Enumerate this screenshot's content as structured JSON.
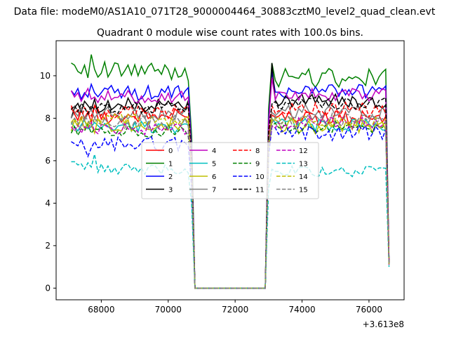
{
  "figure": {
    "suptitle": "Data file: modeM0/AS1A10_071T28_9000004464_30883cztM0_level2_quad_clean.evt",
    "title": "Quadrant 0 module wise count rates with 100.0s bins.",
    "x_offset_label": "+3.613e8"
  },
  "chart_data": {
    "type": "line",
    "title": "Quadrant 0 module wise count rates with 100.0s bins.",
    "xlabel": "",
    "ylabel": "",
    "x_offset": 361300000,
    "xlim": [
      66650,
      77050
    ],
    "ylim": [
      -0.55,
      11.65
    ],
    "xticks": [
      68000,
      70000,
      72000,
      74000,
      76000
    ],
    "yticks": [
      0,
      2,
      4,
      6,
      8,
      10
    ],
    "grid": false,
    "legend": {
      "placement": "center",
      "columns": 4
    },
    "segments": [
      {
        "x_start": 67100,
        "x_end": 70600,
        "step": 100
      },
      {
        "x_start": 70700,
        "x_end": 70800,
        "step": 100
      },
      {
        "x_start": 70800,
        "x_end": 72900,
        "step": 100
      },
      {
        "x_start": 73000,
        "x_end": 73100,
        "step": 100
      },
      {
        "x_start": 73100,
        "x_end": 76500,
        "step": 100
      },
      {
        "x_start": 76600,
        "x_end": 76600,
        "step": 100
      }
    ],
    "series": [
      {
        "name": "0",
        "color": "#ff0000",
        "dash": "solid",
        "level1": 8.1,
        "level2": 8.0,
        "amp": 0.35,
        "end": 1.2,
        "first": [
          8.5,
          8.2,
          7.9,
          8.4,
          8.0,
          8.3,
          7.8,
          8.6
        ]
      },
      {
        "name": "1",
        "color": "#008000",
        "dash": "solid",
        "level1": 10.2,
        "level2": 9.9,
        "amp": 0.45,
        "end": 1.3,
        "first": [
          10.6,
          10.5,
          10.2,
          10.1,
          10.5,
          9.9,
          11.0,
          10.3
        ]
      },
      {
        "name": "2",
        "color": "#0000ff",
        "dash": "solid",
        "level1": 9.2,
        "level2": 9.3,
        "amp": 0.35,
        "end": 1.2,
        "first": [
          9.3,
          9.1,
          9.4,
          8.9,
          9.2,
          9.0,
          9.6,
          9.2
        ]
      },
      {
        "name": "3",
        "color": "#000000",
        "dash": "solid",
        "level1": 8.6,
        "level2": 8.8,
        "amp": 0.35,
        "end": 1.2,
        "first": [
          8.0,
          8.5,
          8.7,
          8.3,
          8.8,
          8.6,
          8.4,
          8.9
        ]
      },
      {
        "name": "4",
        "color": "#c000c0",
        "dash": "solid",
        "level1": 9.0,
        "level2": 9.1,
        "amp": 0.3,
        "end": 1.2,
        "first": [
          9.3,
          9.0,
          9.2,
          8.8,
          9.1,
          9.4,
          8.9,
          9.0
        ]
      },
      {
        "name": "5",
        "color": "#00bfbf",
        "dash": "solid",
        "level1": 7.6,
        "level2": 7.7,
        "amp": 0.3,
        "end": 1.1,
        "first": [
          7.8,
          7.6,
          7.4,
          7.7,
          7.9,
          7.5,
          7.6,
          7.8
        ]
      },
      {
        "name": "6",
        "color": "#bfbf00",
        "dash": "solid",
        "level1": 7.7,
        "level2": 7.6,
        "amp": 0.35,
        "end": 1.1,
        "first": [
          7.4,
          7.9,
          7.6,
          8.0,
          7.5,
          7.8,
          7.7,
          7.3
        ]
      },
      {
        "name": "7",
        "color": "#808080",
        "dash": "solid",
        "level1": 8.2,
        "level2": 8.3,
        "amp": 0.35,
        "end": 1.2,
        "first": [
          8.0,
          8.3,
          8.1,
          8.5,
          7.9,
          8.2,
          8.4,
          8.0
        ]
      },
      {
        "name": "8",
        "color": "#ff0000",
        "dash": "dashed",
        "level1": 8.3,
        "level2": 8.4,
        "amp": 0.35,
        "end": 1.2,
        "first": [
          8.6,
          8.2,
          8.4,
          8.0,
          8.5,
          8.3,
          8.1,
          8.6
        ]
      },
      {
        "name": "9",
        "color": "#008000",
        "dash": "dashed",
        "level1": 7.4,
        "level2": 7.6,
        "amp": 0.3,
        "end": 1.1,
        "first": [
          7.3,
          7.6,
          7.2,
          7.5,
          7.4,
          7.7,
          7.3,
          7.5
        ]
      },
      {
        "name": "10",
        "color": "#0000ff",
        "dash": "dashed",
        "level1": 6.8,
        "level2": 7.3,
        "amp": 0.35,
        "end": 1.1,
        "first": [
          6.9,
          6.8,
          6.7,
          7.0,
          6.6,
          6.2,
          6.6,
          6.9
        ]
      },
      {
        "name": "11",
        "color": "#000000",
        "dash": "dashed",
        "level1": 8.5,
        "level2": 8.7,
        "amp": 0.3,
        "end": 1.2,
        "first": [
          8.4,
          8.6,
          8.3,
          8.7,
          8.5,
          8.2,
          8.6,
          8.4
        ]
      },
      {
        "name": "12",
        "color": "#c000c0",
        "dash": "dashed",
        "level1": 7.5,
        "level2": 7.8,
        "amp": 0.3,
        "end": 1.1,
        "first": [
          7.6,
          7.4,
          7.7,
          7.3,
          7.6,
          7.5,
          7.8,
          7.4
        ]
      },
      {
        "name": "13",
        "color": "#00bfbf",
        "dash": "dashed",
        "level1": 5.6,
        "level2": 5.5,
        "amp": 0.25,
        "end": 1.0,
        "first": [
          5.95,
          5.95,
          5.8,
          5.85,
          5.6,
          5.9,
          5.7,
          6.3
        ]
      },
      {
        "name": "14",
        "color": "#bfbf00",
        "dash": "dashed",
        "level1": 7.9,
        "level2": 7.8,
        "amp": 0.3,
        "end": 1.1,
        "first": [
          7.8,
          8.0,
          7.7,
          8.1,
          7.9,
          7.6,
          8.0,
          7.8
        ]
      },
      {
        "name": "15",
        "color": "#808080",
        "dash": "dashed",
        "level1": 7.8,
        "level2": 7.9,
        "amp": 0.35,
        "end": 1.1,
        "first": [
          7.7,
          8.0,
          7.8,
          7.5,
          8.1,
          7.9,
          7.6,
          8.0
        ]
      }
    ],
    "peak_after_gap": {
      "1": 10.6,
      "3": 10.6,
      "2": 10.2,
      "4": 9.9
    }
  }
}
